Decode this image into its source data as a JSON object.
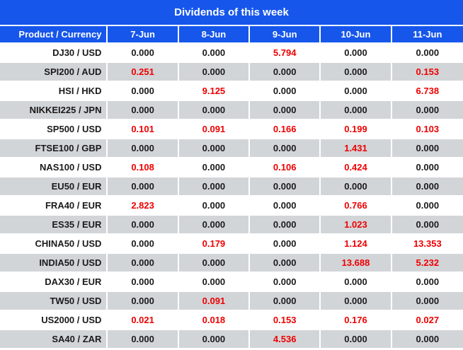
{
  "title": "Dividends of this week",
  "colors": {
    "header_blue": "#1656EB",
    "row_alt_gray": "#D2D5D8",
    "value_black": "#1A1A1A",
    "value_red": "#EE0000",
    "header_text": "#FFFFFF",
    "grid_white": "#FFFFFF"
  },
  "table": {
    "zero_value": "0.000",
    "header": [
      "Product / Currency",
      "7-Jun",
      "8-Jun",
      "9-Jun",
      "10-Jun",
      "11-Jun"
    ],
    "rows": [
      {
        "product": "DJ30 / USD",
        "values": [
          "0.000",
          "0.000",
          "5.794",
          "0.000",
          "0.000"
        ]
      },
      {
        "product": "SPI200 / AUD",
        "values": [
          "0.251",
          "0.000",
          "0.000",
          "0.000",
          "0.153"
        ]
      },
      {
        "product": "HSI / HKD",
        "values": [
          "0.000",
          "9.125",
          "0.000",
          "0.000",
          "6.738"
        ]
      },
      {
        "product": "NIKKEI225 / JPN",
        "values": [
          "0.000",
          "0.000",
          "0.000",
          "0.000",
          "0.000"
        ]
      },
      {
        "product": "SP500 / USD",
        "values": [
          "0.101",
          "0.091",
          "0.166",
          "0.199",
          "0.103"
        ]
      },
      {
        "product": "FTSE100 / GBP",
        "values": [
          "0.000",
          "0.000",
          "0.000",
          "1.431",
          "0.000"
        ]
      },
      {
        "product": "NAS100 / USD",
        "values": [
          "0.108",
          "0.000",
          "0.106",
          "0.424",
          "0.000"
        ]
      },
      {
        "product": "EU50 / EUR",
        "values": [
          "0.000",
          "0.000",
          "0.000",
          "0.000",
          "0.000"
        ]
      },
      {
        "product": "FRA40 / EUR",
        "values": [
          "2.823",
          "0.000",
          "0.000",
          "0.766",
          "0.000"
        ]
      },
      {
        "product": "ES35 / EUR",
        "values": [
          "0.000",
          "0.000",
          "0.000",
          "1.023",
          "0.000"
        ]
      },
      {
        "product": "CHINA50 / USD",
        "values": [
          "0.000",
          "0.179",
          "0.000",
          "1.124",
          "13.353"
        ]
      },
      {
        "product": "INDIA50 / USD",
        "values": [
          "0.000",
          "0.000",
          "0.000",
          "13.688",
          "5.232"
        ]
      },
      {
        "product": "DAX30 / EUR",
        "values": [
          "0.000",
          "0.000",
          "0.000",
          "0.000",
          "0.000"
        ]
      },
      {
        "product": "TW50 / USD",
        "values": [
          "0.000",
          "0.091",
          "0.000",
          "0.000",
          "0.000"
        ]
      },
      {
        "product": "US2000 / USD",
        "values": [
          "0.021",
          "0.018",
          "0.153",
          "0.176",
          "0.027"
        ]
      },
      {
        "product": "SA40 / ZAR",
        "values": [
          "0.000",
          "0.000",
          "4.536",
          "0.000",
          "0.000"
        ]
      }
    ]
  },
  "chart_data": {
    "type": "table",
    "title": "Dividends of this week",
    "columns": [
      "Product / Currency",
      "7-Jun",
      "8-Jun",
      "9-Jun",
      "10-Jun",
      "11-Jun"
    ],
    "rows": [
      {
        "product": "DJ30 / USD",
        "values": [
          0.0,
          0.0,
          5.794,
          0.0,
          0.0
        ]
      },
      {
        "product": "SPI200 / AUD",
        "values": [
          0.251,
          0.0,
          0.0,
          0.0,
          0.153
        ]
      },
      {
        "product": "HSI / HKD",
        "values": [
          0.0,
          9.125,
          0.0,
          0.0,
          6.738
        ]
      },
      {
        "product": "NIKKEI225 / JPN",
        "values": [
          0.0,
          0.0,
          0.0,
          0.0,
          0.0
        ]
      },
      {
        "product": "SP500 / USD",
        "values": [
          0.101,
          0.091,
          0.166,
          0.199,
          0.103
        ]
      },
      {
        "product": "FTSE100 / GBP",
        "values": [
          0.0,
          0.0,
          0.0,
          1.431,
          0.0
        ]
      },
      {
        "product": "NAS100 / USD",
        "values": [
          0.108,
          0.0,
          0.106,
          0.424,
          0.0
        ]
      },
      {
        "product": "EU50 / EUR",
        "values": [
          0.0,
          0.0,
          0.0,
          0.0,
          0.0
        ]
      },
      {
        "product": "FRA40 / EUR",
        "values": [
          2.823,
          0.0,
          0.0,
          0.766,
          0.0
        ]
      },
      {
        "product": "ES35 / EUR",
        "values": [
          0.0,
          0.0,
          0.0,
          1.023,
          0.0
        ]
      },
      {
        "product": "CHINA50 / USD",
        "values": [
          0.0,
          0.179,
          0.0,
          1.124,
          13.353
        ]
      },
      {
        "product": "INDIA50 / USD",
        "values": [
          0.0,
          0.0,
          0.0,
          13.688,
          5.232
        ]
      },
      {
        "product": "DAX30 / EUR",
        "values": [
          0.0,
          0.0,
          0.0,
          0.0,
          0.0
        ]
      },
      {
        "product": "TW50 / USD",
        "values": [
          0.0,
          0.091,
          0.0,
          0.0,
          0.0
        ]
      },
      {
        "product": "US2000 / USD",
        "values": [
          0.021,
          0.018,
          0.153,
          0.176,
          0.027
        ]
      },
      {
        "product": "SA40 / ZAR",
        "values": [
          0.0,
          0.0,
          4.536,
          0.0,
          0.0
        ]
      }
    ],
    "value_color_rule": "nonzero values shown in red, zero values in black"
  }
}
